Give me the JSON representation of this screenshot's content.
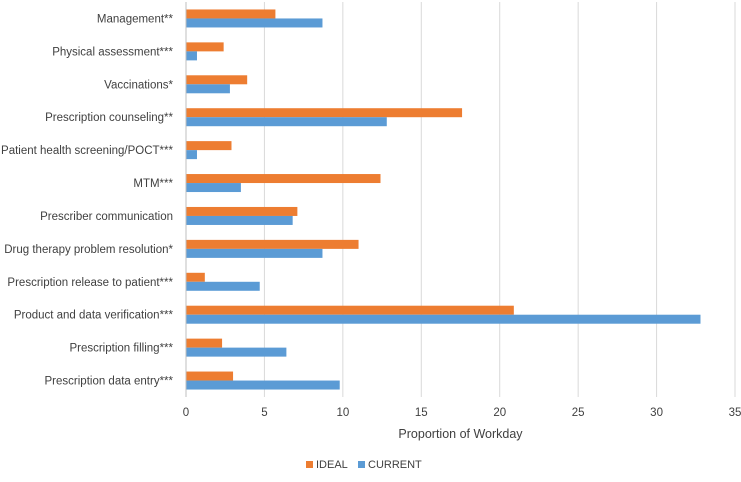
{
  "chart_data": {
    "type": "bar",
    "orientation": "horizontal",
    "title": "",
    "xlabel": "Proportion of Workday",
    "ylabel": "",
    "xlim": [
      0,
      35
    ],
    "xticks": [
      0,
      5,
      10,
      15,
      20,
      25,
      30,
      35
    ],
    "grid": true,
    "legend_position": "bottom",
    "categories": [
      "Management**",
      "Physical assessment***",
      "Vaccinations*",
      "Prescription counseling**",
      "Patient health screening/POCT***",
      "MTM***",
      "Prescriber communication",
      "Drug therapy problem resolution*",
      "Prescription release to patient***",
      "Product and data verification***",
      "Prescription filling***",
      "Prescription data entry***"
    ],
    "series": [
      {
        "name": "IDEAL",
        "color": "#ED7D31",
        "values": [
          5.7,
          2.4,
          3.9,
          17.6,
          2.9,
          12.4,
          7.1,
          11.0,
          1.2,
          20.9,
          2.3,
          3.0
        ]
      },
      {
        "name": "CURRENT",
        "color": "#5B9BD5",
        "values": [
          8.7,
          0.7,
          2.8,
          12.8,
          0.7,
          3.5,
          6.8,
          8.7,
          4.7,
          32.8,
          6.4,
          9.8
        ]
      }
    ]
  }
}
